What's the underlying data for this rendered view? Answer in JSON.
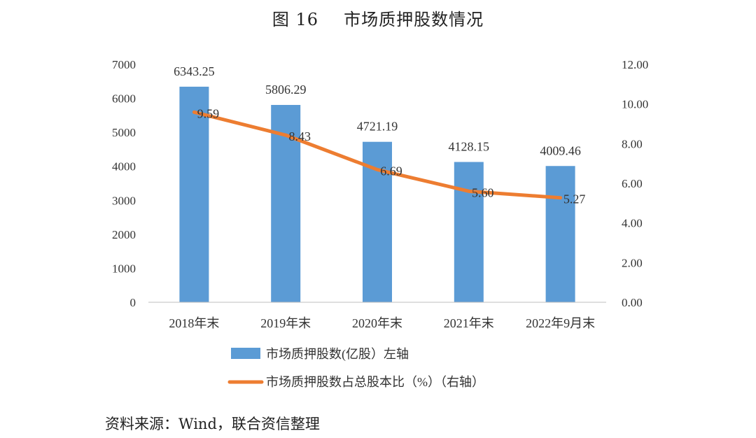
{
  "title": {
    "figure": "图 16",
    "text": "市场质押股数情况"
  },
  "source": "资料来源：Wind，联合资信整理",
  "chart_data": {
    "type": "bar",
    "categories": [
      "2018年末",
      "2019年末",
      "2020年末",
      "2021年末",
      "2022年9月末"
    ],
    "series": [
      {
        "name": "市场质押股数(亿股）左轴",
        "type": "bar",
        "axis": "left",
        "color": "#5B9BD5",
        "values": [
          6343.25,
          5806.29,
          4721.19,
          4128.15,
          4009.46
        ],
        "labels": [
          "6343.25",
          "5806.29",
          "4721.19",
          "4128.15",
          "4009.46"
        ]
      },
      {
        "name": "市场质押股数占总股本比（%）（右轴）",
        "type": "line",
        "axis": "right",
        "color": "#ED7D31",
        "values": [
          9.59,
          8.43,
          6.69,
          5.6,
          5.27
        ],
        "labels": [
          "9.59",
          "8.43",
          "6.69",
          "5.60",
          "5.27"
        ]
      }
    ],
    "y_left": {
      "ylim": [
        0,
        7000
      ],
      "ticks": [
        "0",
        "1000",
        "2000",
        "3000",
        "4000",
        "5000",
        "6000",
        "7000"
      ]
    },
    "y_right": {
      "ylim": [
        0,
        12
      ],
      "ticks": [
        "0.00",
        "2.00",
        "4.00",
        "6.00",
        "8.00",
        "10.00",
        "12.00"
      ]
    },
    "grid": false,
    "legend_position": "bottom"
  }
}
